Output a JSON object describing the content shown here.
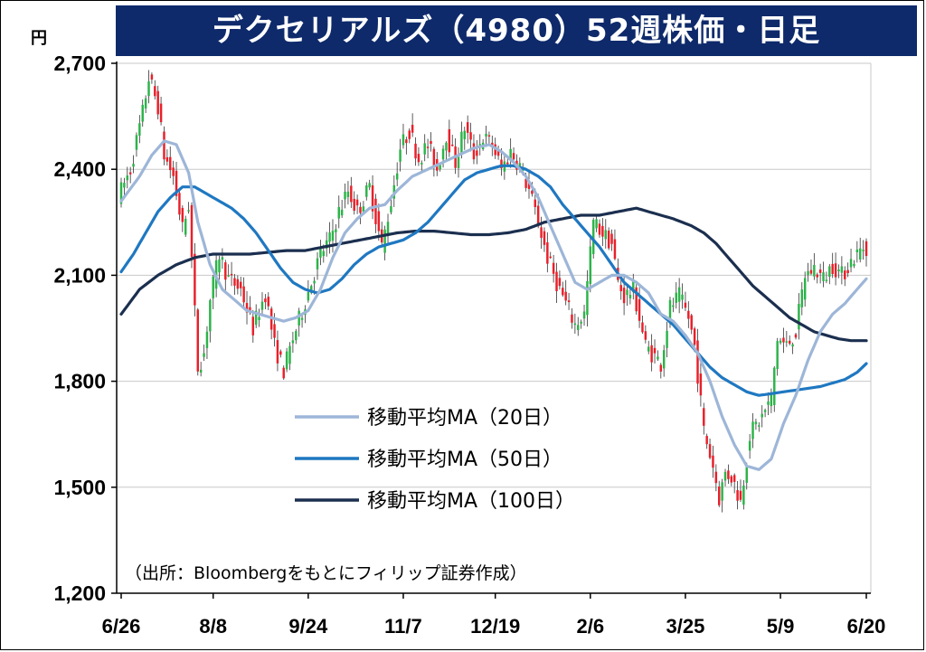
{
  "header": {
    "title": "デクセリアルズ（4980）52週株価・日足",
    "unit": "円"
  },
  "source_note": "（出所：Bloombergをもとにフィリップ証券作成）",
  "colors": {
    "title_bg": "#0e2a6b",
    "up": "#2db34a",
    "down": "#e8202a",
    "ma20": "#9db6d8",
    "ma50": "#1f78c1",
    "ma100": "#1b2f4f",
    "grid": "#c8c8c8"
  },
  "chart_data": {
    "type": "candlestick",
    "title": "デクセリアルズ（4980）52週株価・日足",
    "ylabel": "円",
    "ylim": [
      1200,
      2700
    ],
    "yticks": [
      "2,700",
      "2,400",
      "2,100",
      "1,800",
      "1,500",
      "1,200"
    ],
    "ytick_values": [
      2700,
      2400,
      2100,
      1800,
      1500,
      1200
    ],
    "xticks": [
      "6/26",
      "8/8",
      "9/24",
      "11/7",
      "12/19",
      "2/6",
      "3/25",
      "5/9",
      "6/20"
    ],
    "xtick_index": [
      0,
      30,
      61,
      92,
      122,
      153,
      184,
      215,
      243
    ],
    "n_days": 244,
    "grid": "horizontal",
    "legend_position": "center",
    "legend": [
      {
        "label": "移動平均MA（20日）",
        "color": "#9db6d8"
      },
      {
        "label": "移動平均MA（50日）",
        "color": "#1f78c1"
      },
      {
        "label": "移動平均MA（100日）",
        "color": "#1b2f4f"
      }
    ],
    "price_path": [
      [
        0,
        2320
      ],
      [
        4,
        2400
      ],
      [
        8,
        2560
      ],
      [
        10,
        2660
      ],
      [
        13,
        2580
      ],
      [
        15,
        2440
      ],
      [
        18,
        2380
      ],
      [
        21,
        2230
      ],
      [
        23,
        2300
      ],
      [
        26,
        1840
      ],
      [
        28,
        1880
      ],
      [
        30,
        2030
      ],
      [
        33,
        2160
      ],
      [
        36,
        2090
      ],
      [
        40,
        2060
      ],
      [
        44,
        1950
      ],
      [
        48,
        2050
      ],
      [
        51,
        1900
      ],
      [
        54,
        1830
      ],
      [
        57,
        1920
      ],
      [
        60,
        2000
      ],
      [
        63,
        2080
      ],
      [
        66,
        2160
      ],
      [
        69,
        2200
      ],
      [
        72,
        2280
      ],
      [
        75,
        2340
      ],
      [
        78,
        2280
      ],
      [
        82,
        2350
      ],
      [
        86,
        2180
      ],
      [
        89,
        2310
      ],
      [
        92,
        2460
      ],
      [
        95,
        2510
      ],
      [
        98,
        2430
      ],
      [
        101,
        2470
      ],
      [
        104,
        2400
      ],
      [
        107,
        2500
      ],
      [
        110,
        2420
      ],
      [
        113,
        2520
      ],
      [
        116,
        2440
      ],
      [
        119,
        2490
      ],
      [
        122,
        2470
      ],
      [
        125,
        2400
      ],
      [
        128,
        2450
      ],
      [
        131,
        2410
      ],
      [
        134,
        2340
      ],
      [
        137,
        2250
      ],
      [
        140,
        2150
      ],
      [
        143,
        2080
      ],
      [
        146,
        2020
      ],
      [
        149,
        1960
      ],
      [
        152,
        1990
      ],
      [
        155,
        2250
      ],
      [
        158,
        2220
      ],
      [
        161,
        2190
      ],
      [
        163,
        2080
      ],
      [
        165,
        2040
      ],
      [
        168,
        2060
      ],
      [
        170,
        1980
      ],
      [
        172,
        1900
      ],
      [
        175,
        1870
      ],
      [
        177,
        1850
      ],
      [
        180,
        2010
      ],
      [
        183,
        2040
      ],
      [
        186,
        1980
      ],
      [
        188,
        1900
      ],
      [
        191,
        1660
      ],
      [
        194,
        1560
      ],
      [
        196,
        1470
      ],
      [
        198,
        1540
      ],
      [
        200,
        1530
      ],
      [
        203,
        1460
      ],
      [
        206,
        1650
      ],
      [
        210,
        1700
      ],
      [
        213,
        1750
      ],
      [
        215,
        1920
      ],
      [
        218,
        1900
      ],
      [
        221,
        1940
      ],
      [
        224,
        2100
      ],
      [
        227,
        2120
      ],
      [
        230,
        2090
      ],
      [
        233,
        2130
      ],
      [
        236,
        2100
      ],
      [
        239,
        2140
      ],
      [
        242,
        2170
      ],
      [
        243,
        2180
      ]
    ],
    "ma20": [
      [
        0,
        2310
      ],
      [
        6,
        2380
      ],
      [
        10,
        2440
      ],
      [
        14,
        2480
      ],
      [
        18,
        2470
      ],
      [
        22,
        2390
      ],
      [
        25,
        2250
      ],
      [
        29,
        2130
      ],
      [
        33,
        2060
      ],
      [
        37,
        2030
      ],
      [
        41,
        2000
      ],
      [
        45,
        1990
      ],
      [
        49,
        1980
      ],
      [
        53,
        1970
      ],
      [
        57,
        1980
      ],
      [
        61,
        2000
      ],
      [
        65,
        2060
      ],
      [
        69,
        2150
      ],
      [
        73,
        2220
      ],
      [
        77,
        2260
      ],
      [
        81,
        2290
      ],
      [
        86,
        2300
      ],
      [
        90,
        2340
      ],
      [
        95,
        2380
      ],
      [
        100,
        2400
      ],
      [
        105,
        2420
      ],
      [
        110,
        2440
      ],
      [
        115,
        2460
      ],
      [
        120,
        2470
      ],
      [
        124,
        2450
      ],
      [
        128,
        2420
      ],
      [
        132,
        2380
      ],
      [
        136,
        2320
      ],
      [
        140,
        2240
      ],
      [
        144,
        2160
      ],
      [
        148,
        2080
      ],
      [
        152,
        2060
      ],
      [
        156,
        2080
      ],
      [
        160,
        2100
      ],
      [
        164,
        2100
      ],
      [
        168,
        2080
      ],
      [
        172,
        2050
      ],
      [
        176,
        1990
      ],
      [
        180,
        1970
      ],
      [
        184,
        1930
      ],
      [
        188,
        1880
      ],
      [
        192,
        1800
      ],
      [
        196,
        1700
      ],
      [
        200,
        1620
      ],
      [
        204,
        1560
      ],
      [
        208,
        1550
      ],
      [
        212,
        1580
      ],
      [
        216,
        1680
      ],
      [
        220,
        1760
      ],
      [
        224,
        1860
      ],
      [
        228,
        1940
      ],
      [
        232,
        1990
      ],
      [
        236,
        2020
      ],
      [
        240,
        2060
      ],
      [
        243,
        2090
      ]
    ],
    "ma50": [
      [
        0,
        2110
      ],
      [
        4,
        2160
      ],
      [
        8,
        2220
      ],
      [
        12,
        2280
      ],
      [
        16,
        2320
      ],
      [
        20,
        2350
      ],
      [
        24,
        2350
      ],
      [
        28,
        2330
      ],
      [
        32,
        2310
      ],
      [
        36,
        2290
      ],
      [
        40,
        2260
      ],
      [
        44,
        2220
      ],
      [
        48,
        2170
      ],
      [
        52,
        2120
      ],
      [
        56,
        2080
      ],
      [
        60,
        2060
      ],
      [
        64,
        2050
      ],
      [
        68,
        2060
      ],
      [
        72,
        2090
      ],
      [
        76,
        2130
      ],
      [
        80,
        2160
      ],
      [
        84,
        2180
      ],
      [
        88,
        2190
      ],
      [
        92,
        2200
      ],
      [
        96,
        2220
      ],
      [
        100,
        2250
      ],
      [
        104,
        2290
      ],
      [
        108,
        2330
      ],
      [
        112,
        2370
      ],
      [
        116,
        2390
      ],
      [
        120,
        2400
      ],
      [
        124,
        2410
      ],
      [
        128,
        2410
      ],
      [
        132,
        2400
      ],
      [
        136,
        2380
      ],
      [
        140,
        2350
      ],
      [
        144,
        2300
      ],
      [
        148,
        2260
      ],
      [
        152,
        2220
      ],
      [
        156,
        2180
      ],
      [
        160,
        2130
      ],
      [
        164,
        2080
      ],
      [
        168,
        2050
      ],
      [
        172,
        2020
      ],
      [
        176,
        1990
      ],
      [
        180,
        1960
      ],
      [
        184,
        1920
      ],
      [
        188,
        1880
      ],
      [
        192,
        1840
      ],
      [
        196,
        1810
      ],
      [
        200,
        1790
      ],
      [
        204,
        1770
      ],
      [
        208,
        1760
      ],
      [
        212,
        1765
      ],
      [
        216,
        1770
      ],
      [
        220,
        1775
      ],
      [
        224,
        1780
      ],
      [
        228,
        1785
      ],
      [
        232,
        1795
      ],
      [
        236,
        1805
      ],
      [
        240,
        1825
      ],
      [
        243,
        1850
      ]
    ],
    "ma100": [
      [
        0,
        1990
      ],
      [
        6,
        2060
      ],
      [
        12,
        2100
      ],
      [
        18,
        2130
      ],
      [
        24,
        2150
      ],
      [
        30,
        2160
      ],
      [
        36,
        2160
      ],
      [
        42,
        2160
      ],
      [
        48,
        2165
      ],
      [
        54,
        2170
      ],
      [
        60,
        2170
      ],
      [
        66,
        2180
      ],
      [
        72,
        2190
      ],
      [
        78,
        2200
      ],
      [
        84,
        2210
      ],
      [
        90,
        2220
      ],
      [
        96,
        2225
      ],
      [
        102,
        2225
      ],
      [
        108,
        2220
      ],
      [
        114,
        2215
      ],
      [
        120,
        2215
      ],
      [
        126,
        2220
      ],
      [
        132,
        2230
      ],
      [
        138,
        2250
      ],
      [
        144,
        2260
      ],
      [
        150,
        2270
      ],
      [
        156,
        2270
      ],
      [
        162,
        2280
      ],
      [
        168,
        2290
      ],
      [
        174,
        2275
      ],
      [
        180,
        2260
      ],
      [
        186,
        2240
      ],
      [
        190,
        2220
      ],
      [
        194,
        2190
      ],
      [
        198,
        2150
      ],
      [
        202,
        2110
      ],
      [
        206,
        2070
      ],
      [
        210,
        2040
      ],
      [
        214,
        2010
      ],
      [
        218,
        1980
      ],
      [
        222,
        1960
      ],
      [
        226,
        1940
      ],
      [
        230,
        1930
      ],
      [
        234,
        1920
      ],
      [
        238,
        1915
      ],
      [
        243,
        1915
      ]
    ]
  }
}
